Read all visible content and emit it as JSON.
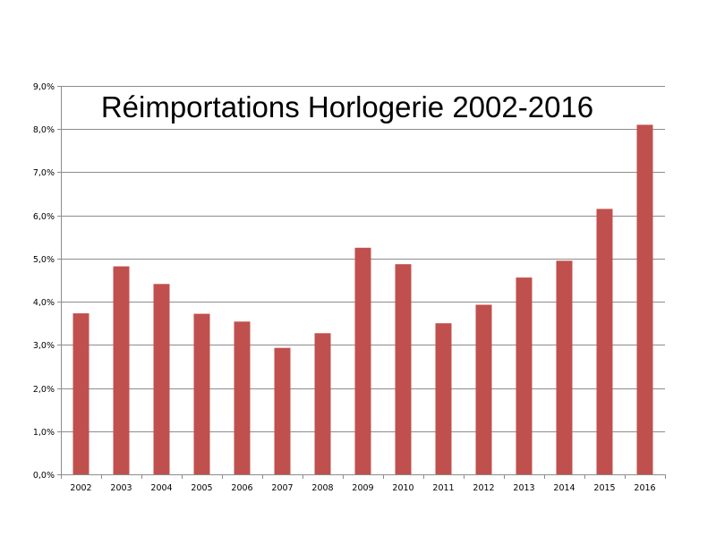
{
  "chart_data": {
    "type": "bar",
    "title": "Réimportations Horlogerie 2002-2016",
    "xlabel": "",
    "ylabel": "",
    "categories": [
      "2002",
      "2003",
      "2004",
      "2005",
      "2006",
      "2007",
      "2008",
      "2009",
      "2010",
      "2011",
      "2012",
      "2013",
      "2014",
      "2015",
      "2016"
    ],
    "values": [
      3.73,
      4.82,
      4.41,
      3.72,
      3.54,
      2.93,
      3.27,
      5.25,
      4.87,
      3.5,
      3.93,
      4.56,
      4.95,
      6.15,
      8.1
    ],
    "ylim": [
      0,
      9
    ],
    "y_ticks": [
      "0,0%",
      "1,0%",
      "2,0%",
      "3,0%",
      "4,0%",
      "5,0%",
      "6,0%",
      "7,0%",
      "8,0%",
      "9,0%"
    ],
    "grid": true,
    "legend": "none",
    "bar_color": "#c0504d",
    "gridline_color": "#8c8c8c"
  }
}
